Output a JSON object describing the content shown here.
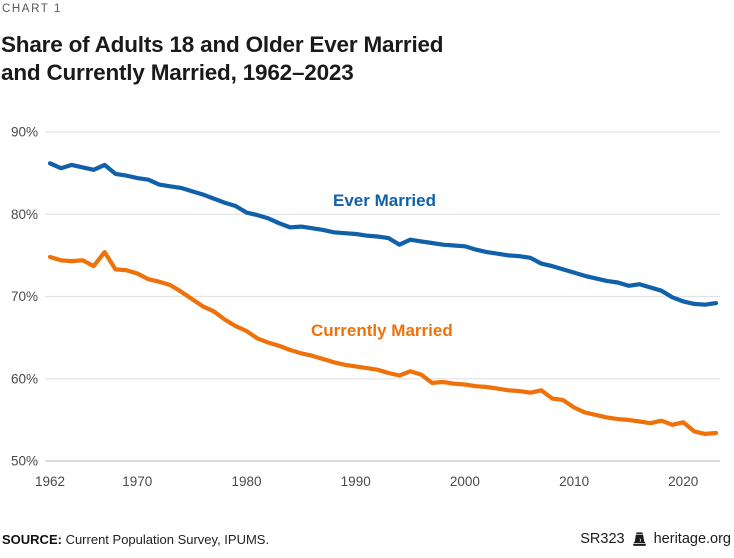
{
  "page": {
    "kicker": "CHART 1",
    "title_line1": "Share of Adults 18 and Older Ever Married",
    "title_line2": "and Currently Married, 1962–2023"
  },
  "chart_data": {
    "type": "line",
    "title": "Share of Adults 18 and Older Ever Married and Currently Married, 1962–2023",
    "x": [
      1962,
      1963,
      1964,
      1965,
      1966,
      1967,
      1968,
      1969,
      1970,
      1971,
      1972,
      1973,
      1974,
      1975,
      1976,
      1977,
      1978,
      1979,
      1980,
      1981,
      1982,
      1983,
      1984,
      1985,
      1986,
      1987,
      1988,
      1989,
      1990,
      1991,
      1992,
      1993,
      1994,
      1995,
      1996,
      1997,
      1998,
      1999,
      2000,
      2001,
      2002,
      2003,
      2004,
      2005,
      2006,
      2007,
      2008,
      2009,
      2010,
      2011,
      2012,
      2013,
      2014,
      2015,
      2016,
      2017,
      2018,
      2019,
      2020,
      2021,
      2022,
      2023
    ],
    "series": [
      {
        "name": "Ever Married",
        "color": "#1060AA",
        "values": [
          86.2,
          85.6,
          86.0,
          85.7,
          85.4,
          86.0,
          84.9,
          84.7,
          84.4,
          84.2,
          83.6,
          83.4,
          83.2,
          82.8,
          82.4,
          81.9,
          81.4,
          81.0,
          80.2,
          79.9,
          79.5,
          78.9,
          78.4,
          78.5,
          78.3,
          78.1,
          77.8,
          77.7,
          77.6,
          77.4,
          77.3,
          77.1,
          76.3,
          76.9,
          76.7,
          76.5,
          76.3,
          76.2,
          76.1,
          75.7,
          75.4,
          75.2,
          75.0,
          74.9,
          74.7,
          74.0,
          73.7,
          73.3,
          72.9,
          72.5,
          72.2,
          71.9,
          71.7,
          71.3,
          71.5,
          71.1,
          70.7,
          69.9,
          69.4,
          69.1,
          69.0,
          69.2
        ]
      },
      {
        "name": "Currently Married",
        "color": "#EE7209",
        "values": [
          74.8,
          74.4,
          74.3,
          74.4,
          73.7,
          75.4,
          73.3,
          73.2,
          72.8,
          72.1,
          71.8,
          71.4,
          70.6,
          69.7,
          68.8,
          68.2,
          67.2,
          66.4,
          65.8,
          64.9,
          64.4,
          64.0,
          63.5,
          63.1,
          62.8,
          62.4,
          62.0,
          61.7,
          61.5,
          61.3,
          61.1,
          60.7,
          60.4,
          60.9,
          60.5,
          59.5,
          59.6,
          59.4,
          59.3,
          59.1,
          59.0,
          58.8,
          58.6,
          58.5,
          58.3,
          58.6,
          57.6,
          57.4,
          56.5,
          55.9,
          55.6,
          55.3,
          55.1,
          55.0,
          54.8,
          54.6,
          54.9,
          54.4,
          54.7,
          53.6,
          53.3,
          53.4
        ]
      }
    ],
    "xlim": [
      1962,
      2023
    ],
    "ylim": [
      50,
      90
    ],
    "y_ticks": [
      50,
      60,
      70,
      80,
      90
    ],
    "y_tick_suffix": "%",
    "x_ticks": [
      1962,
      1970,
      1980,
      1990,
      2000,
      2010,
      2020
    ],
    "grid": "horizontal",
    "legend_position": "inline-labels"
  },
  "colors": {
    "grid": "#e3e3e3",
    "baseline": "#c7c7c7",
    "tick_text": "#4a4a4b"
  },
  "footer": {
    "source_label": "SOURCE:",
    "source_text": " Current Population Survey, IPUMS.",
    "report_id": "SR323",
    "site": "heritage.org"
  }
}
